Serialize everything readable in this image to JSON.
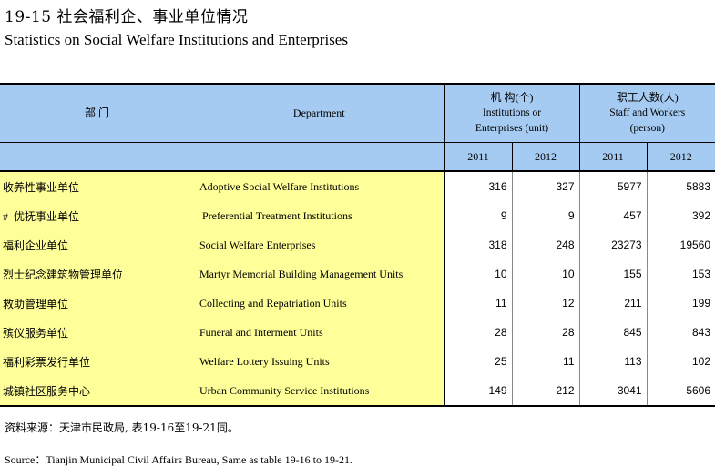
{
  "title": {
    "cn": "19-15  社会福利企、事业单位情况",
    "en": "Statistics on Social Welfare Institutions and Enterprises"
  },
  "header": {
    "dept_cn": "部 门",
    "dept_en": "Department",
    "inst_cn": "机  构(个)",
    "inst_en_1": "Institutions or",
    "inst_en_2": "Enterprises (unit)",
    "staff_cn": "职工人数(人)",
    "staff_en_1": "Staff and Workers",
    "staff_en_2": "(person)",
    "years": [
      "2011",
      "2012",
      "2011",
      "2012"
    ]
  },
  "rows": [
    {
      "cn": "收养性事业单位",
      "en": "Adoptive Social Welfare Institutions",
      "inst_2011": "316",
      "inst_2012": "327",
      "staff_2011": "5977",
      "staff_2012": "5883"
    },
    {
      "cn": "#  优抚事业单位",
      "en": " Preferential Treatment Institutions",
      "inst_2011": "9",
      "inst_2012": "9",
      "staff_2011": "457",
      "staff_2012": "392"
    },
    {
      "cn": "福利企业单位",
      "en": "Social Welfare Enterprises",
      "inst_2011": "318",
      "inst_2012": "248",
      "staff_2011": "23273",
      "staff_2012": "19560"
    },
    {
      "cn": "烈士纪念建筑物管理单位",
      "en": "Martyr Memorial Building Management Units",
      "inst_2011": "10",
      "inst_2012": "10",
      "staff_2011": "155",
      "staff_2012": "153"
    },
    {
      "cn": "救助管理单位",
      "en": "Collecting and Repatriation Units",
      "inst_2011": "11",
      "inst_2012": "12",
      "staff_2011": "211",
      "staff_2012": "199"
    },
    {
      "cn": "殡仪服务单位",
      "en": "Funeral and Interment Units",
      "inst_2011": "28",
      "inst_2012": "28",
      "staff_2011": "845",
      "staff_2012": "843"
    },
    {
      "cn": "福利彩票发行单位",
      "en": "Welfare Lottery Issuing Units",
      "inst_2011": "25",
      "inst_2012": "11",
      "staff_2011": "113",
      "staff_2012": "102"
    },
    {
      "cn": "城镇社区服务中心",
      "en": "Urban Community Service Institutions",
      "inst_2011": "149",
      "inst_2012": "212",
      "staff_2011": "3041",
      "staff_2012": "5606"
    }
  ],
  "notes": {
    "cn": "资料来源：天津市民政局, 表19-16至19-21同。",
    "en": "Source：Tianjin Municipal Civil Affairs Bureau, Same as table 19-16 to 19-21."
  }
}
